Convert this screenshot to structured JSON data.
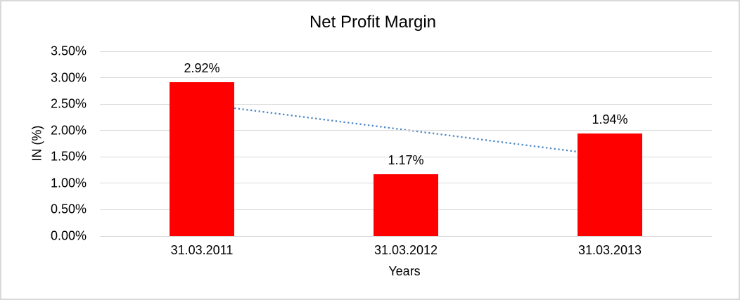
{
  "chart_data": {
    "type": "bar",
    "title": "Net Profit Margin",
    "xlabel": "Years",
    "ylabel": "IN (%)",
    "categories": [
      "31.03.2011",
      "31.03.2012",
      "31.03.2013"
    ],
    "values": [
      2.92,
      1.17,
      1.94
    ],
    "data_labels": [
      "2.92%",
      "1.17%",
      "1.94%"
    ],
    "ylim": [
      0,
      3.5
    ],
    "ytick_step": 0.5,
    "ytick_labels": [
      "0.00%",
      "0.50%",
      "1.00%",
      "1.50%",
      "2.00%",
      "2.50%",
      "3.00%",
      "3.50%"
    ],
    "grid": true,
    "legend": "none",
    "bar_color": "#ff0000",
    "gridline_color": "#d9d9d9",
    "frame_border_color": "#d9d9d9",
    "trendline": {
      "type": "linear",
      "style": "dotted",
      "color": "#4e87c7",
      "start_value": 2.5,
      "end_value": 1.52
    }
  }
}
